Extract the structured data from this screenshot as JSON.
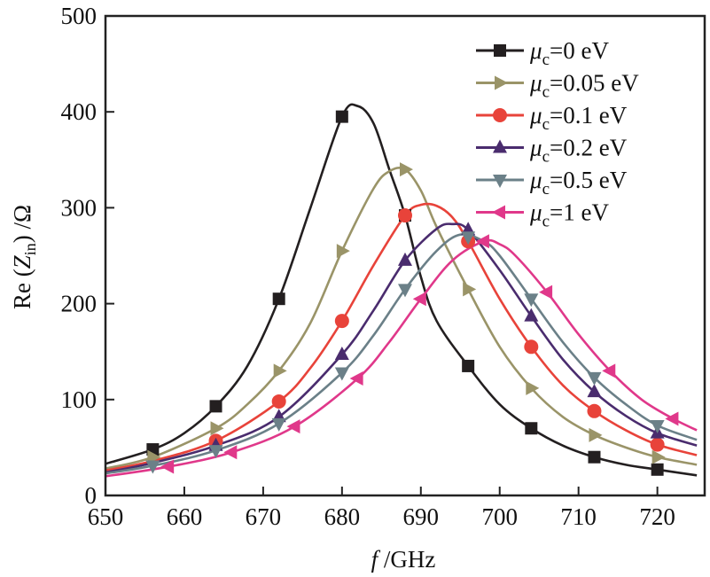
{
  "chart_data": {
    "type": "line",
    "xlabel": "f /GHz",
    "xlabel_parts": {
      "italic": "f",
      "rest": " /GHz"
    },
    "ylabel": "Re (Z_in) /Ω",
    "ylabel_parts": {
      "pre": "Re (",
      "main": "Z",
      "sub": "in",
      "post": ") /Ω"
    },
    "xlim": [
      650,
      726
    ],
    "ylim": [
      0,
      500
    ],
    "xticks": [
      650,
      660,
      670,
      680,
      690,
      700,
      710,
      720
    ],
    "yticks": [
      0,
      100,
      200,
      300,
      400,
      500
    ],
    "grid": false,
    "legend_position": "top-right",
    "series": [
      {
        "name": "μc=0 eV",
        "label": {
          "mu": "μ",
          "sub": "c",
          "rest": "=0 eV"
        },
        "color": "#231f20",
        "marker": "square",
        "x": [
          650,
          656,
          660,
          664,
          668,
          672,
          676,
          680,
          682,
          684,
          686,
          688,
          690,
          692,
          696,
          700,
          704,
          708,
          712,
          716,
          720,
          725
        ],
        "y": [
          33,
          48,
          65,
          93,
          135,
          205,
          300,
          395,
          406,
          388,
          340,
          292,
          228,
          182,
          135,
          95,
          70,
          52,
          40,
          32,
          27,
          21
        ],
        "marker_x": [
          656,
          664,
          672,
          680,
          688,
          696,
          704,
          712,
          720
        ]
      },
      {
        "name": "μc=0.05 eV",
        "label": {
          "mu": "μ",
          "sub": "c",
          "rest": "=0.05 eV"
        },
        "color": "#9a9468",
        "marker": "triangle-right",
        "x": [
          650,
          656,
          664,
          668,
          672,
          676,
          680,
          684,
          686,
          688,
          690,
          692,
          696,
          700,
          704,
          708,
          712,
          716,
          720,
          725
        ],
        "y": [
          28,
          40,
          70,
          95,
          130,
          180,
          255,
          320,
          338,
          340,
          318,
          280,
          215,
          155,
          112,
          82,
          63,
          50,
          40,
          32
        ],
        "marker_x": [
          656,
          664,
          672,
          680,
          688,
          696,
          704,
          712,
          720
        ]
      },
      {
        "name": "μc=0.1 eV",
        "label": {
          "mu": "μ",
          "sub": "c",
          "rest": "=0.1 eV"
        },
        "color": "#e8433a",
        "marker": "circle",
        "x": [
          650,
          656,
          664,
          672,
          676,
          680,
          684,
          688,
          690,
          692,
          694,
          696,
          700,
          704,
          708,
          712,
          716,
          720,
          725
        ],
        "y": [
          26,
          36,
          57,
          98,
          133,
          182,
          240,
          292,
          303,
          302,
          290,
          265,
          205,
          155,
          115,
          88,
          68,
          53,
          42
        ],
        "marker_x": [
          664,
          672,
          680,
          688,
          696,
          704,
          712,
          720
        ]
      },
      {
        "name": "μc=0.2 eV",
        "label": {
          "mu": "μ",
          "sub": "c",
          "rest": "=0.2 eV"
        },
        "color": "#4a2c6e",
        "marker": "triangle-up",
        "x": [
          650,
          656,
          664,
          672,
          680,
          684,
          688,
          692,
          694,
          696,
          700,
          704,
          708,
          712,
          716,
          720,
          725
        ],
        "y": [
          24,
          34,
          52,
          82,
          147,
          193,
          245,
          278,
          283,
          277,
          235,
          187,
          142,
          108,
          83,
          65,
          52
        ],
        "marker_x": [
          664,
          672,
          680,
          688,
          696,
          704,
          712,
          720
        ]
      },
      {
        "name": "μc=0.5 eV",
        "label": {
          "mu": "μ",
          "sub": "c",
          "rest": "=0.5 eV"
        },
        "color": "#6b8088",
        "marker": "triangle-down",
        "x": [
          650,
          656,
          664,
          672,
          680,
          684,
          688,
          692,
          695,
          698,
          700,
          704,
          708,
          712,
          716,
          720,
          725
        ],
        "y": [
          23,
          31,
          47,
          75,
          128,
          167,
          215,
          255,
          272,
          265,
          250,
          205,
          160,
          123,
          95,
          73,
          58
        ],
        "marker_x": [
          656,
          664,
          672,
          680,
          688,
          696,
          704,
          712,
          720
        ]
      },
      {
        "name": "μc=1 eV",
        "label": {
          "mu": "μ",
          "sub": "c",
          "rest": "=1 eV"
        },
        "color": "#e0388a",
        "marker": "triangle-left",
        "x": [
          650,
          658,
          666,
          674,
          682,
          686,
          690,
          694,
          698,
          700,
          702,
          706,
          710,
          714,
          718,
          722,
          725
        ],
        "y": [
          20,
          30,
          45,
          72,
          122,
          160,
          205,
          245,
          265,
          262,
          250,
          212,
          168,
          130,
          100,
          80,
          68
        ],
        "marker_x": [
          658,
          666,
          674,
          682,
          690,
          698,
          706,
          714,
          722
        ]
      }
    ]
  }
}
